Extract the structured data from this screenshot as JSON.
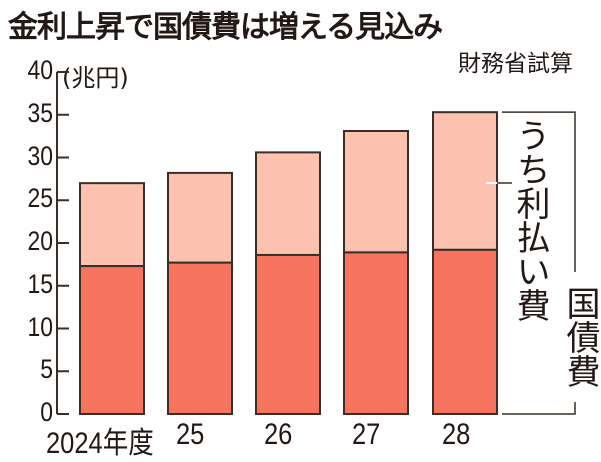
{
  "header": {
    "title": "金利上昇で国債費は増える見込み",
    "source": "財務省試算"
  },
  "colors": {
    "total_light": "#fdc2af",
    "interest_dark": "#f6735e",
    "outline": "#3a2e28",
    "text": "#231815"
  },
  "labels": {
    "unit": "(兆円)",
    "interest_series": "うち利払い費",
    "total_series": "国債費"
  },
  "axis": {
    "y_ticks": [
      "0",
      "5",
      "10",
      "15",
      "20",
      "25",
      "30",
      "35",
      "40"
    ],
    "x_ticks": [
      "2024年度",
      "25",
      "26",
      "27",
      "28"
    ]
  },
  "chart_data": {
    "type": "bar",
    "stacked": true,
    "title": "金利上昇で国債費は増える見込み",
    "subtitle": "財務省試算",
    "xlabel": "",
    "ylabel": "(兆円)",
    "ylim": [
      0,
      40
    ],
    "yticks": [
      0,
      5,
      10,
      15,
      20,
      25,
      30,
      35,
      40
    ],
    "categories": [
      "2024年度",
      "25",
      "26",
      "27",
      "28"
    ],
    "series": [
      {
        "name": "うち利払い費",
        "values": [
          17.3,
          17.7,
          18.6,
          18.9,
          19.2
        ],
        "color": "#f6735e"
      },
      {
        "name": "国債費",
        "values": [
          27.0,
          28.2,
          30.6,
          33.1,
          35.3
        ],
        "color": "#fdc2af"
      }
    ],
    "grid": false,
    "legend_position": "right (bracket annotations)"
  }
}
